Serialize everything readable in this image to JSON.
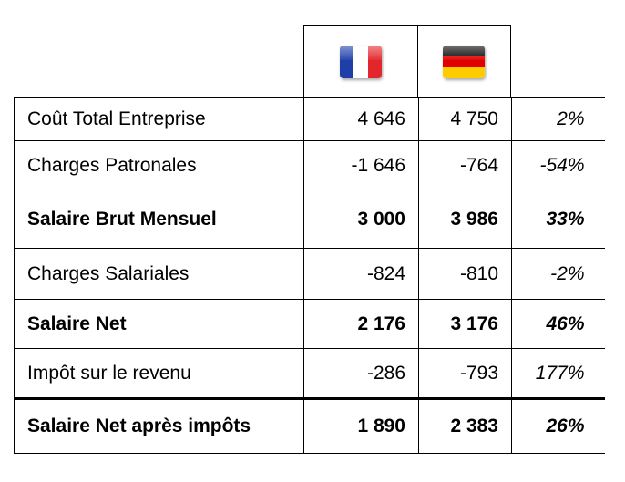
{
  "flags": {
    "france": "french-flag-icon",
    "germany": "german-flag-icon",
    "colors": {
      "fr": [
        "#1f3fa8",
        "#ffffff",
        "#e3262b"
      ],
      "de": [
        "#000000",
        "#e00000",
        "#ffcc00"
      ]
    }
  },
  "rows": [
    {
      "label": "Coût Total Entreprise",
      "fr": "4 646",
      "de": "4 750",
      "diff": "2%",
      "bold": false
    },
    {
      "label": "Charges Patronales",
      "fr": "-1 646",
      "de": "-764",
      "diff": "-54%",
      "bold": false
    },
    {
      "label": "Salaire Brut Mensuel",
      "fr": "3 000",
      "de": "3 986",
      "diff": "33%",
      "bold": true
    },
    {
      "label": "Charges Salariales",
      "fr": "-824",
      "de": "-810",
      "diff": "-2%",
      "bold": false
    },
    {
      "label": "Salaire Net",
      "fr": "2 176",
      "de": "3 176",
      "diff": "46%",
      "bold": true
    },
    {
      "label": "Impôt sur le revenu",
      "fr": "-286",
      "de": "-793",
      "diff": "177%",
      "bold": false
    },
    {
      "label": "Salaire Net après impôts",
      "fr": "1 890",
      "de": "2 383",
      "diff": "26%",
      "bold": true
    }
  ]
}
